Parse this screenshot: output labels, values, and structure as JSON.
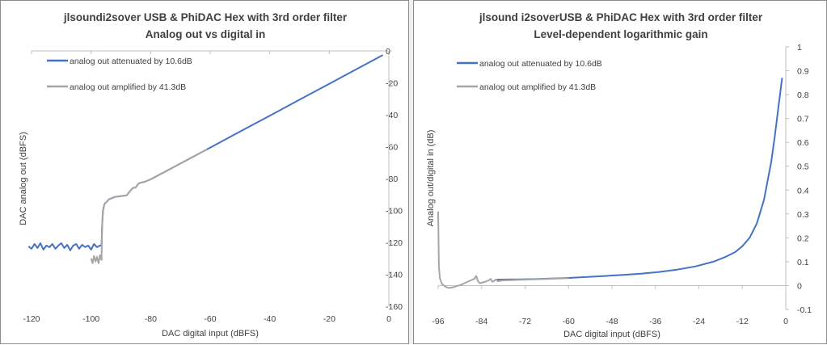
{
  "colors": {
    "attenuated": "#4472c4",
    "amplified": "#a5a5a5",
    "axis": "#bfbfbf",
    "text": "#404040"
  },
  "chart_data": [
    {
      "type": "line",
      "title": "jlsoundi2sover USB & PhiDAC Hex with 3rd order filter",
      "subtitle": "Analog out vs digital in",
      "xlabel": "DAC digital input (dBFS)",
      "ylabel": "DAC analog out (dBFS)",
      "xlim": [
        -120,
        0
      ],
      "ylim": [
        -160,
        0
      ],
      "x_ticks": [
        "-120",
        "-100",
        "-80",
        "-60",
        "-40",
        "-20",
        "0"
      ],
      "y_ticks": [
        "0",
        "-20",
        "-40",
        "-60",
        "-80",
        "-100",
        "-120",
        "-140",
        "-160"
      ],
      "y_axis_side": "right",
      "grid": false,
      "legend_position": "top-left",
      "series": [
        {
          "name": "analog out attenuated by 10.6dB",
          "color": "#4472c4",
          "points": [
            [
              -121,
              -122.5
            ],
            [
              -120,
              -124
            ],
            [
              -119,
              -121
            ],
            [
              -118,
              -123.5
            ],
            [
              -117,
              -120.5
            ],
            [
              -116,
              -124.5
            ],
            [
              -115,
              -122
            ],
            [
              -114,
              -123
            ],
            [
              -113,
              -121
            ],
            [
              -112,
              -124
            ],
            [
              -111,
              -122
            ],
            [
              -110,
              -120.5
            ],
            [
              -109,
              -123.5
            ],
            [
              -108,
              -121.5
            ],
            [
              -107,
              -125
            ],
            [
              -106,
              -122
            ],
            [
              -105,
              -121
            ],
            [
              -104,
              -124
            ],
            [
              -103,
              -121.5
            ],
            [
              -102,
              -123
            ],
            [
              -101,
              -122
            ],
            [
              -100,
              -124.5
            ],
            [
              -99,
              -121
            ],
            [
              -98,
              -123
            ],
            [
              -97,
              -122
            ],
            [
              -96.5,
              -122
            ],
            [
              -96.3,
              -110
            ],
            [
              -96,
              -100
            ],
            [
              -95.5,
              -96
            ],
            [
              -94,
              -93
            ],
            [
              -92,
              -91.5
            ],
            [
              -90,
              -91
            ],
            [
              -88,
              -90.5
            ],
            [
              -87,
              -88
            ],
            [
              -86,
              -86
            ],
            [
              -85,
              -85.5
            ],
            [
              -84,
              -83
            ],
            [
              -83,
              -82.5
            ],
            [
              -82,
              -82
            ],
            [
              -80,
              -80.5
            ],
            [
              -70,
              -70.6
            ],
            [
              -60,
              -60.6
            ],
            [
              -50,
              -50.6
            ],
            [
              -40,
              -40.6
            ],
            [
              -30,
              -30.6
            ],
            [
              -20,
              -20.6
            ],
            [
              -10,
              -10.6
            ],
            [
              -2,
              -2.6
            ]
          ]
        },
        {
          "name": "analog out amplified by 41.3dB",
          "color": "#a5a5a5",
          "points": [
            [
              -100,
              -130
            ],
            [
              -99.5,
              -133
            ],
            [
              -99,
              -128.5
            ],
            [
              -98.5,
              -132
            ],
            [
              -98,
              -129
            ],
            [
              -97.5,
              -133
            ],
            [
              -97,
              -128
            ],
            [
              -96.5,
              -131
            ],
            [
              -96.3,
              -110
            ],
            [
              -96,
              -100
            ],
            [
              -95.5,
              -96
            ],
            [
              -94,
              -93
            ],
            [
              -92,
              -91.5
            ],
            [
              -90,
              -91
            ],
            [
              -88,
              -90.5
            ],
            [
              -87,
              -88
            ],
            [
              -86,
              -86
            ],
            [
              -85,
              -85.5
            ],
            [
              -84,
              -83
            ],
            [
              -83,
              -82.5
            ],
            [
              -82,
              -82
            ],
            [
              -80,
              -80.5
            ],
            [
              -75,
              -75.6
            ],
            [
              -70,
              -70.6
            ],
            [
              -65,
              -65.6
            ],
            [
              -61,
              -61.6
            ]
          ]
        }
      ]
    },
    {
      "type": "line",
      "title": "jlsound i2soverUSB & PhiDAC Hex with 3rd order filter",
      "subtitle": "Level-dependent logarithmic gain",
      "xlabel": "DAC digital input (dBFS)",
      "ylabel": "Analog out/digital in (dB)",
      "xlim": [
        -96,
        0
      ],
      "ylim": [
        -0.1,
        1
      ],
      "x_ticks": [
        "-96",
        "-84",
        "-72",
        "-60",
        "-48",
        "-36",
        "-24",
        "-12",
        "0"
      ],
      "y_ticks": [
        "1",
        "0.9",
        "0.8",
        "0.7",
        "0.6",
        "0.5",
        "0.4",
        "0.3",
        "0.2",
        "0.1",
        "0",
        "-0.1"
      ],
      "y_axis_side": "right",
      "grid": false,
      "legend_position": "top-left",
      "series": [
        {
          "name": "analog out attenuated by 10.6dB",
          "color": "#4472c4",
          "points": [
            [
              -80,
              0.025
            ],
            [
              -70,
              0.027
            ],
            [
              -60,
              0.032
            ],
            [
              -50,
              0.04
            ],
            [
              -45,
              0.045
            ],
            [
              -40,
              0.05
            ],
            [
              -35,
              0.057
            ],
            [
              -30,
              0.067
            ],
            [
              -25,
              0.08
            ],
            [
              -20,
              0.1
            ],
            [
              -17,
              0.118
            ],
            [
              -14,
              0.14
            ],
            [
              -12,
              0.165
            ],
            [
              -10,
              0.2
            ],
            [
              -8,
              0.26
            ],
            [
              -6,
              0.36
            ],
            [
              -4,
              0.52
            ],
            [
              -3,
              0.63
            ],
            [
              -2,
              0.75
            ],
            [
              -1,
              0.87
            ]
          ]
        },
        {
          "name": "analog out amplified by 41.3dB",
          "color": "#a5a5a5",
          "points": [
            [
              -96,
              0.31
            ],
            [
              -95.8,
              0.08
            ],
            [
              -95.5,
              0.03
            ],
            [
              -95,
              0.008
            ],
            [
              -94,
              -0.005
            ],
            [
              -93,
              -0.01
            ],
            [
              -92,
              -0.008
            ],
            [
              -91,
              -0.003
            ],
            [
              -90,
              0.002
            ],
            [
              -89,
              0.008
            ],
            [
              -88,
              0.015
            ],
            [
              -87,
              0.022
            ],
            [
              -86,
              0.028
            ],
            [
              -85.5,
              0.04
            ],
            [
              -85,
              0.018
            ],
            [
              -84.5,
              0.01
            ],
            [
              -84,
              0.012
            ],
            [
              -83,
              0.016
            ],
            [
              -82,
              0.022
            ],
            [
              -81.5,
              0.028
            ],
            [
              -81,
              0.016
            ],
            [
              -80.5,
              0.02
            ],
            [
              -80,
              0.026
            ],
            [
              -79.5,
              0.018
            ],
            [
              -79,
              0.02
            ],
            [
              -78,
              0.022
            ],
            [
              -76,
              0.023
            ],
            [
              -74,
              0.024
            ],
            [
              -72,
              0.025
            ],
            [
              -70,
              0.026
            ],
            [
              -68,
              0.027
            ],
            [
              -66,
              0.028
            ],
            [
              -64,
              0.029
            ],
            [
              -62,
              0.03
            ],
            [
              -60,
              0.031
            ]
          ]
        }
      ]
    }
  ]
}
